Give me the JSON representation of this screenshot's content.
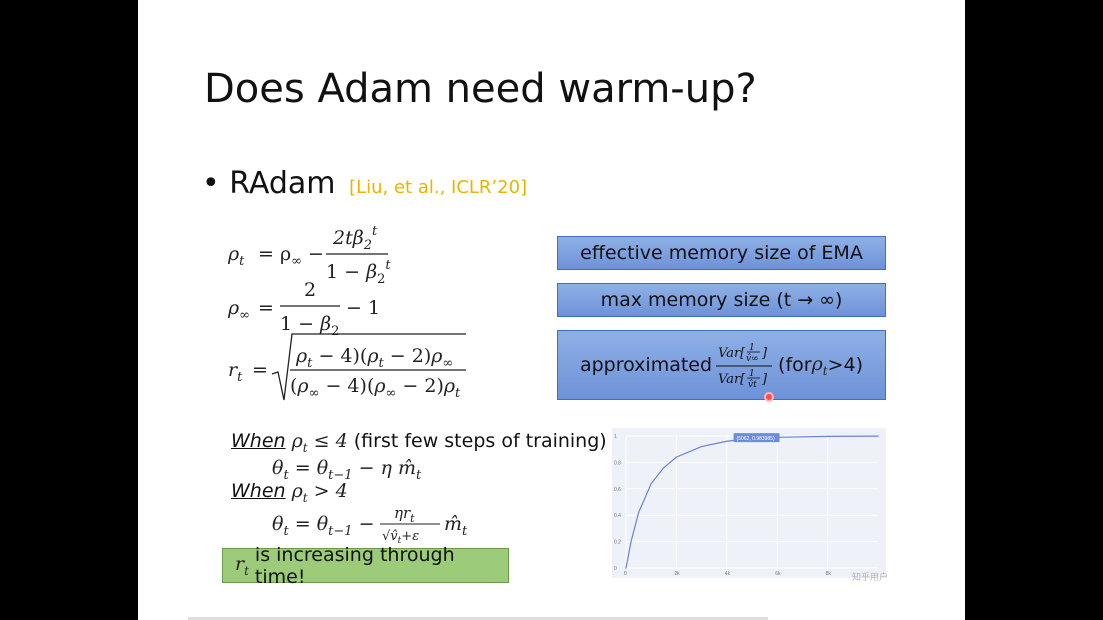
{
  "title": "Does Adam need warm-up?",
  "bullet": {
    "mark": "•",
    "text": "RAdam",
    "citation": "[Liu, et al., ICLR’20]"
  },
  "boxes": {
    "ema": "effective memory size of EMA",
    "max": "max memory size (t → ∞)",
    "approx_prefix": "approximated",
    "approx_suffix_pre": "(for ",
    "approx_suffix_post": ">4)"
  },
  "conditions": {
    "when_label": "When",
    "c1_tail": "(first few steps of training)"
  },
  "note": "is increasing through time!",
  "watermark": "知乎用户",
  "chart_data": {
    "type": "line",
    "x_ticks": [
      "0",
      "2k",
      "4k",
      "6k",
      "8k"
    ],
    "y_ticks": [
      "0",
      "0.2",
      "0.4",
      "0.6",
      "0.8",
      "1"
    ],
    "tooltip": "(5062, 0.983985)",
    "xlim": [
      0,
      10000
    ],
    "ylim": [
      0,
      1
    ],
    "series": [
      {
        "x": [
          0,
          200,
          500,
          1000,
          1500,
          2000,
          3000,
          4000,
          5000,
          6000,
          8000,
          10000
        ],
        "values": [
          0,
          0.2,
          0.42,
          0.64,
          0.76,
          0.84,
          0.92,
          0.96,
          0.982,
          0.99,
          0.997,
          0.999
        ]
      }
    ]
  }
}
